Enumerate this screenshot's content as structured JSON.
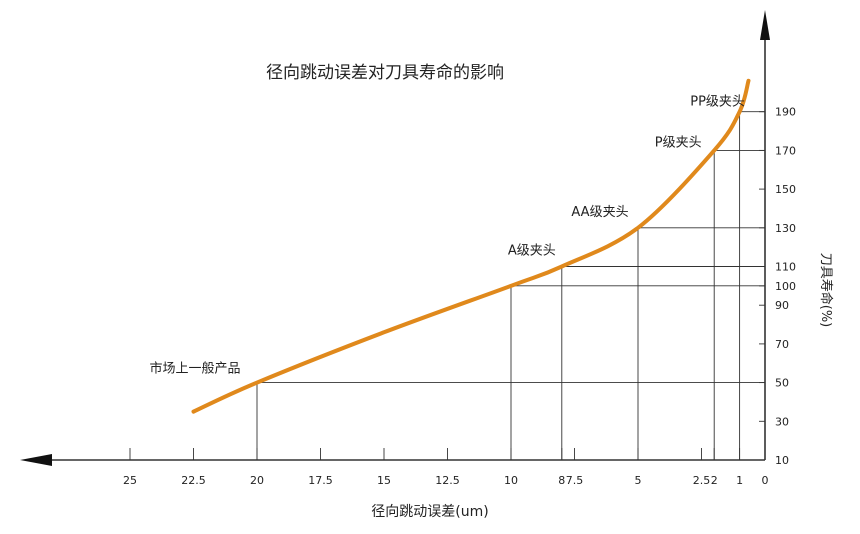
{
  "chart_data": {
    "type": "line",
    "title": "径向跳动误差对刀具寿命的影响",
    "xlabel": "径向跳动误差(um)",
    "ylabel": "刀具寿命(%)",
    "x_reversed": true,
    "xlim": [
      0,
      25
    ],
    "ylim": [
      10,
      190
    ],
    "x_ticks": [
      "25",
      "22.5",
      "20",
      "17.5",
      "15",
      "12.5",
      "10",
      "8",
      "7.5",
      "5",
      "2.5",
      "2",
      "1",
      "0"
    ],
    "x_tick_values": [
      25,
      22.5,
      20,
      17.5,
      15,
      12.5,
      10,
      8,
      7.5,
      5,
      2.5,
      2,
      1,
      0
    ],
    "y_ticks": [
      "10",
      "30",
      "50",
      "70",
      "90",
      "100",
      "110",
      "130",
      "150",
      "170",
      "190"
    ],
    "y_tick_values": [
      10,
      30,
      50,
      70,
      90,
      100,
      110,
      130,
      150,
      170,
      190
    ],
    "grid": false,
    "line_color": "#e0891c",
    "series": [
      {
        "x": [
          22.5,
          20,
          15,
          10,
          8,
          5,
          2,
          1,
          0.65
        ],
        "y": [
          35,
          50,
          76,
          100,
          110,
          130,
          170,
          190,
          206
        ]
      }
    ],
    "annotations": [
      {
        "text": "市场上一般产品",
        "x": 20,
        "y": 50
      },
      {
        "text": "A级夹头",
        "x": 8,
        "y": 110
      },
      {
        "text": "AA级夹头",
        "x": 5,
        "y": 130
      },
      {
        "text": "P级夹头",
        "x": 2,
        "y": 170
      },
      {
        "text": "PP级夹头",
        "x": 1,
        "y": 190
      }
    ],
    "reference_points": [
      {
        "x": 20,
        "y": 50
      },
      {
        "x": 10,
        "y": 100
      },
      {
        "x": 8,
        "y": 110
      },
      {
        "x": 5,
        "y": 130
      },
      {
        "x": 2,
        "y": 170
      },
      {
        "x": 1,
        "y": 190
      }
    ]
  }
}
